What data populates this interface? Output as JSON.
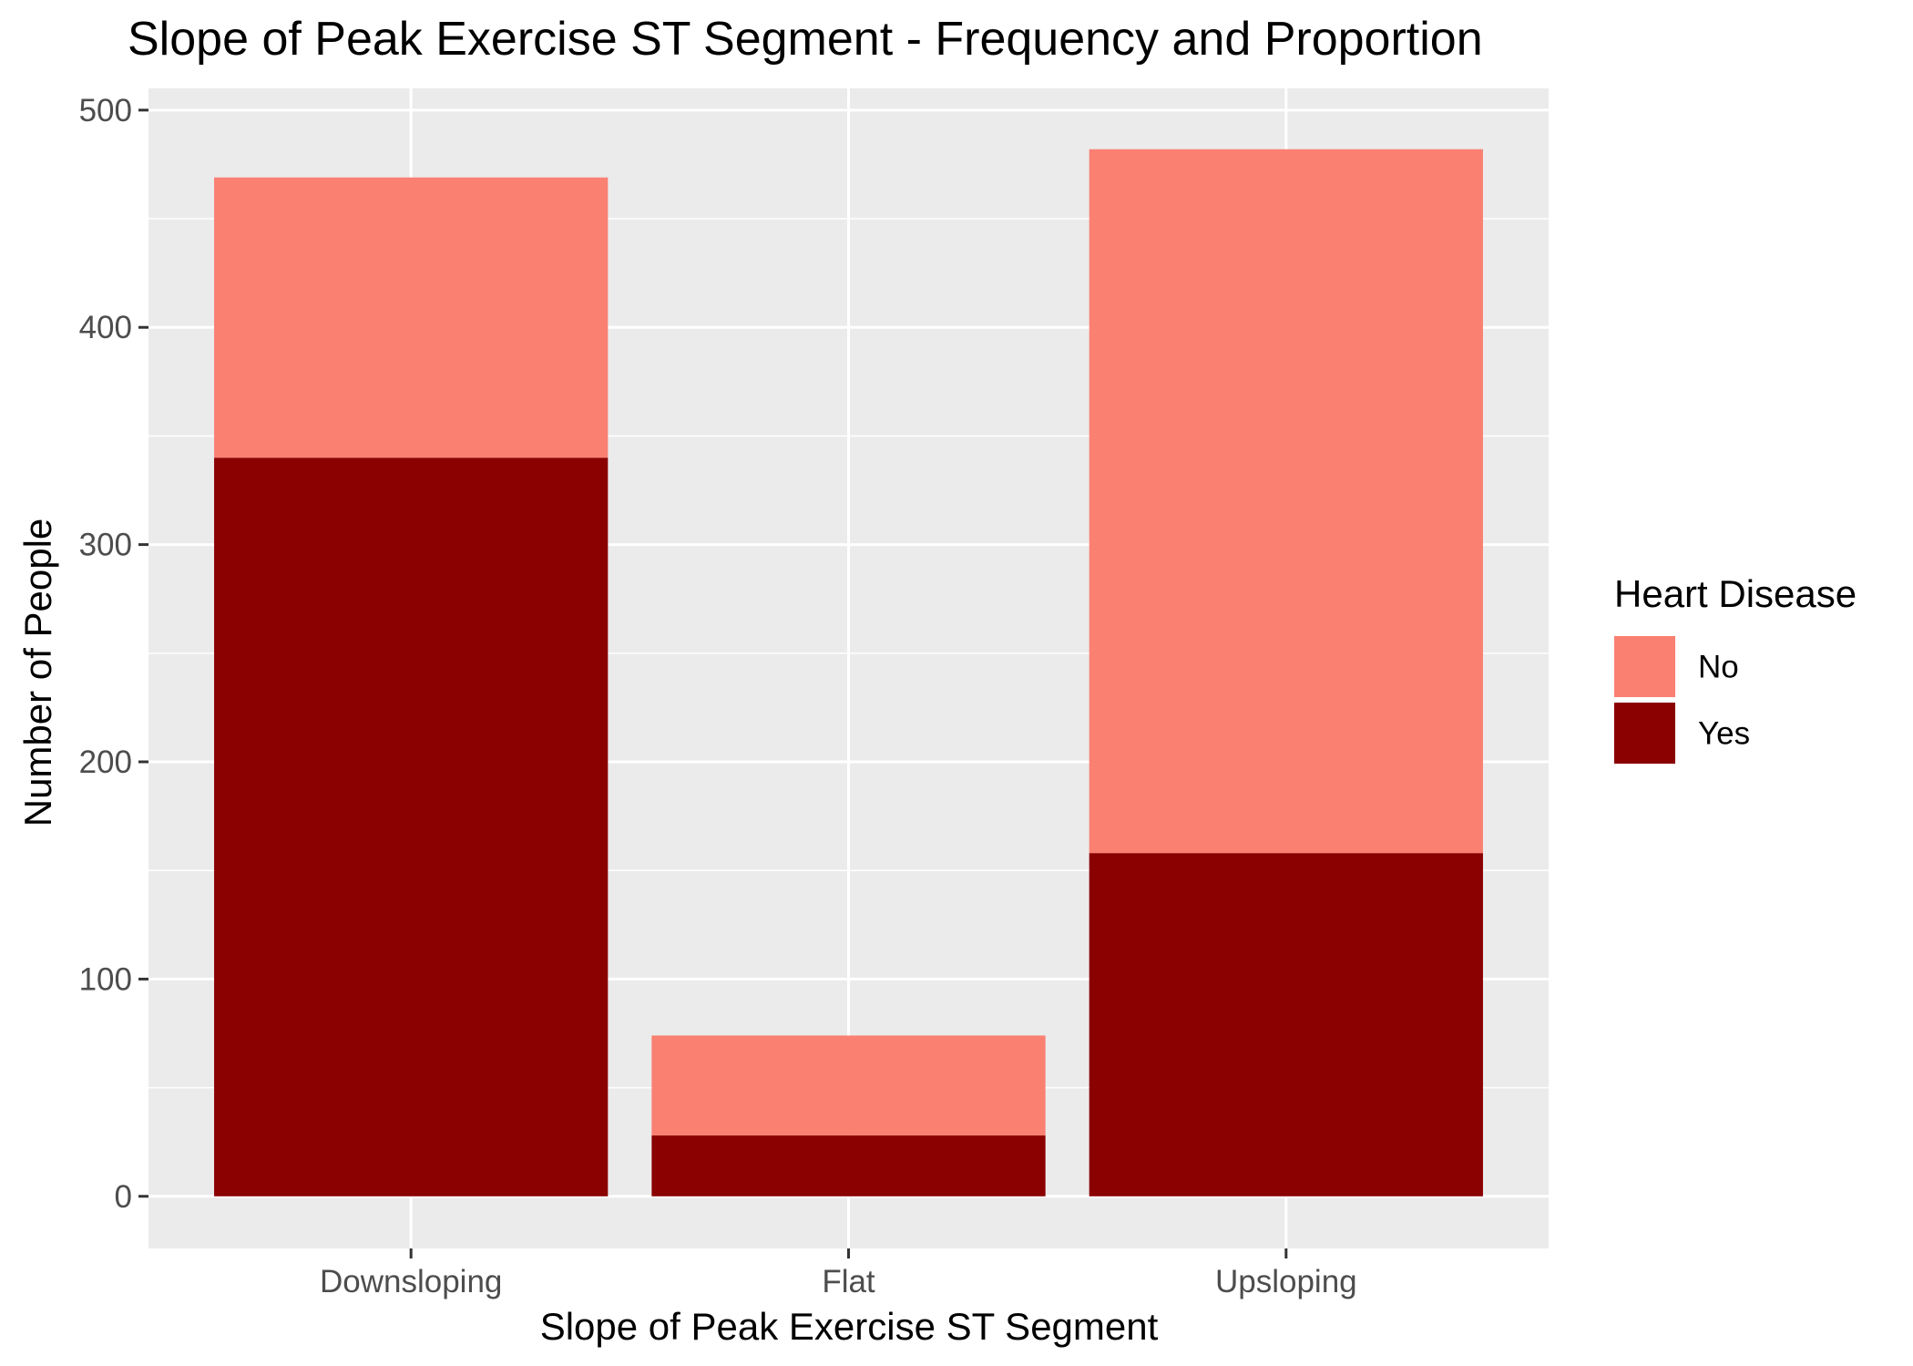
{
  "chart_data": {
    "type": "bar",
    "stacked": true,
    "title": "Slope of Peak Exercise ST Segment - Frequency and Proportion",
    "xlabel": "Slope of Peak Exercise ST Segment",
    "ylabel": "Number of People",
    "categories": [
      "Downsloping",
      "Flat",
      "Upsloping"
    ],
    "series": [
      {
        "name": "Yes",
        "values": [
          340,
          28,
          158
        ],
        "color": "#8b0000"
      },
      {
        "name": "No",
        "values": [
          129,
          46,
          324
        ],
        "color": "#fa8072"
      }
    ],
    "ylim": [
      -24,
      510
    ],
    "yticks": [
      0,
      100,
      200,
      300,
      400,
      500
    ],
    "ytick_labels": [
      "0",
      "100",
      "200",
      "300",
      "400",
      "500"
    ],
    "grid": true,
    "legend": {
      "title": "Heart Disease",
      "position": "right",
      "entries": [
        {
          "label": "No",
          "color": "#fa8072"
        },
        {
          "label": "Yes",
          "color": "#8b0000"
        }
      ]
    },
    "panel_background": "#ebebeb",
    "grid_color": "#ffffff"
  }
}
